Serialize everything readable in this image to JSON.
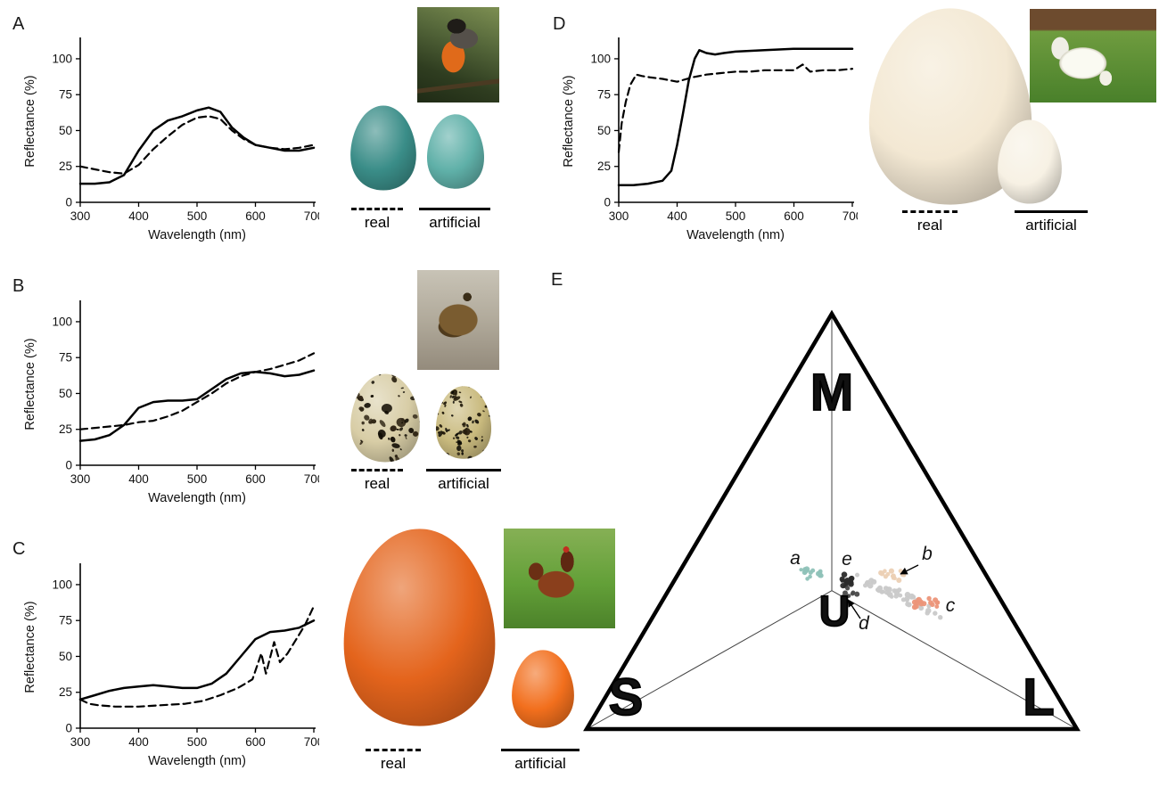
{
  "panels": {
    "A": {
      "real_egg_color": "#3a8d88",
      "artificial_egg_color": "#5fb0a8",
      "eggs_speckled": false
    },
    "B": {
      "real_egg_color": "#d8cda6",
      "artificial_egg_color": "#c9ba7e",
      "eggs_speckled": true
    },
    "C": {
      "real_egg_color": "#e4641c",
      "artificial_egg_color": "#f26f1d",
      "eggs_speckled": false
    },
    "D": {
      "real_egg_color": "#f3e8d3",
      "artificial_egg_color": "#f7f1e4",
      "eggs_speckled": false
    }
  },
  "chart_data": [
    {
      "panel": "A",
      "type": "line",
      "xlabel": "Wavelength (nm)",
      "ylabel": "Reflectance (%)",
      "xlim": [
        300,
        700
      ],
      "ylim": [
        0,
        113
      ],
      "xticks": [
        300,
        400,
        500,
        600,
        700
      ],
      "yticks": [
        0,
        25,
        50,
        75,
        100
      ],
      "series": [
        {
          "name": "real",
          "style": "dashed",
          "points": [
            [
              300,
              25
            ],
            [
              325,
              23
            ],
            [
              350,
              21
            ],
            [
              375,
              20
            ],
            [
              400,
              26
            ],
            [
              425,
              37
            ],
            [
              450,
              46
            ],
            [
              475,
              54
            ],
            [
              500,
              59
            ],
            [
              520,
              60
            ],
            [
              540,
              58
            ],
            [
              560,
              50
            ],
            [
              580,
              44
            ],
            [
              600,
              40
            ],
            [
              625,
              38
            ],
            [
              650,
              37
            ],
            [
              675,
              38
            ],
            [
              700,
              40
            ]
          ]
        },
        {
          "name": "artificial",
          "style": "solid",
          "points": [
            [
              300,
              13
            ],
            [
              325,
              13
            ],
            [
              350,
              14
            ],
            [
              375,
              19
            ],
            [
              400,
              36
            ],
            [
              425,
              50
            ],
            [
              450,
              57
            ],
            [
              475,
              60
            ],
            [
              500,
              64
            ],
            [
              520,
              66
            ],
            [
              540,
              63
            ],
            [
              560,
              52
            ],
            [
              580,
              45
            ],
            [
              600,
              40
            ],
            [
              625,
              38
            ],
            [
              650,
              36
            ],
            [
              675,
              36
            ],
            [
              700,
              38
            ]
          ]
        }
      ]
    },
    {
      "panel": "B",
      "type": "line",
      "xlabel": "Wavelength (nm)",
      "ylabel": "Reflectance (%)",
      "xlim": [
        300,
        700
      ],
      "ylim": [
        0,
        113
      ],
      "xticks": [
        300,
        400,
        500,
        600,
        700
      ],
      "yticks": [
        0,
        25,
        50,
        75,
        100
      ],
      "series": [
        {
          "name": "real",
          "style": "dashed",
          "points": [
            [
              300,
              25
            ],
            [
              325,
              26
            ],
            [
              350,
              27
            ],
            [
              375,
              28
            ],
            [
              400,
              30
            ],
            [
              425,
              31
            ],
            [
              450,
              34
            ],
            [
              475,
              38
            ],
            [
              500,
              44
            ],
            [
              525,
              50
            ],
            [
              550,
              57
            ],
            [
              575,
              62
            ],
            [
              600,
              65
            ],
            [
              625,
              67
            ],
            [
              650,
              70
            ],
            [
              675,
              73
            ],
            [
              700,
              78
            ]
          ]
        },
        {
          "name": "artificial",
          "style": "solid",
          "points": [
            [
              300,
              17
            ],
            [
              325,
              18
            ],
            [
              350,
              21
            ],
            [
              375,
              28
            ],
            [
              400,
              40
            ],
            [
              425,
              44
            ],
            [
              450,
              45
            ],
            [
              475,
              45
            ],
            [
              500,
              46
            ],
            [
              525,
              53
            ],
            [
              550,
              60
            ],
            [
              575,
              64
            ],
            [
              600,
              65
            ],
            [
              625,
              64
            ],
            [
              650,
              62
            ],
            [
              675,
              63
            ],
            [
              700,
              66
            ]
          ]
        }
      ]
    },
    {
      "panel": "C",
      "type": "line",
      "xlabel": "Wavelength (nm)",
      "ylabel": "Reflectance (%)",
      "xlim": [
        300,
        700
      ],
      "ylim": [
        0,
        113
      ],
      "xticks": [
        300,
        400,
        500,
        600,
        700
      ],
      "yticks": [
        0,
        25,
        50,
        75,
        100
      ],
      "series": [
        {
          "name": "real",
          "style": "dashed",
          "points": [
            [
              300,
              20
            ],
            [
              315,
              17
            ],
            [
              330,
              16
            ],
            [
              360,
              15
            ],
            [
              400,
              15
            ],
            [
              440,
              16
            ],
            [
              480,
              17
            ],
            [
              510,
              19
            ],
            [
              540,
              23
            ],
            [
              570,
              28
            ],
            [
              595,
              34
            ],
            [
              610,
              52
            ],
            [
              618,
              38
            ],
            [
              632,
              60
            ],
            [
              642,
              46
            ],
            [
              655,
              52
            ],
            [
              670,
              62
            ],
            [
              685,
              72
            ],
            [
              700,
              85
            ]
          ]
        },
        {
          "name": "artificial",
          "style": "solid",
          "points": [
            [
              300,
              20
            ],
            [
              325,
              23
            ],
            [
              350,
              26
            ],
            [
              375,
              28
            ],
            [
              400,
              29
            ],
            [
              425,
              30
            ],
            [
              450,
              29
            ],
            [
              475,
              28
            ],
            [
              500,
              28
            ],
            [
              525,
              31
            ],
            [
              550,
              38
            ],
            [
              575,
              50
            ],
            [
              600,
              62
            ],
            [
              625,
              67
            ],
            [
              650,
              68
            ],
            [
              675,
              70
            ],
            [
              700,
              75
            ]
          ]
        }
      ]
    },
    {
      "panel": "D",
      "type": "line",
      "xlabel": "Wavelength (nm)",
      "ylabel": "Reflectance (%)",
      "xlim": [
        300,
        700
      ],
      "ylim": [
        0,
        113
      ],
      "xticks": [
        300,
        400,
        500,
        600,
        700
      ],
      "yticks": [
        0,
        25,
        50,
        75,
        100
      ],
      "series": [
        {
          "name": "real",
          "style": "dashed",
          "points": [
            [
              300,
              35
            ],
            [
              305,
              55
            ],
            [
              312,
              70
            ],
            [
              320,
              82
            ],
            [
              330,
              89
            ],
            [
              340,
              88
            ],
            [
              355,
              87
            ],
            [
              375,
              86
            ],
            [
              400,
              84
            ],
            [
              425,
              87
            ],
            [
              450,
              89
            ],
            [
              475,
              90
            ],
            [
              500,
              91
            ],
            [
              525,
              91
            ],
            [
              550,
              92
            ],
            [
              575,
              92
            ],
            [
              600,
              92
            ],
            [
              615,
              96
            ],
            [
              628,
              91
            ],
            [
              650,
              92
            ],
            [
              675,
              92
            ],
            [
              700,
              93
            ]
          ]
        },
        {
          "name": "artificial",
          "style": "solid",
          "points": [
            [
              300,
              12
            ],
            [
              325,
              12
            ],
            [
              350,
              13
            ],
            [
              375,
              15
            ],
            [
              390,
              22
            ],
            [
              400,
              40
            ],
            [
              410,
              62
            ],
            [
              420,
              85
            ],
            [
              430,
              100
            ],
            [
              438,
              106
            ],
            [
              450,
              104
            ],
            [
              465,
              103
            ],
            [
              480,
              104
            ],
            [
              500,
              105
            ],
            [
              550,
              106
            ],
            [
              600,
              107
            ],
            [
              650,
              107
            ],
            [
              700,
              107
            ]
          ]
        }
      ]
    },
    {
      "panel": "E",
      "type": "scatter",
      "axis_labels": [
        "M",
        "S",
        "L",
        "U"
      ],
      "clusters": [
        {
          "label": "a",
          "color": "#8fc2b8",
          "center": [
            0.452,
            0.606
          ]
        },
        {
          "label": "e",
          "color": "#2b2b2b",
          "center": [
            0.522,
            0.62
          ]
        },
        {
          "label": "b",
          "color": "#ecd0b4",
          "center": [
            0.614,
            0.61
          ]
        },
        {
          "label": "d",
          "color": "#4a4a4a",
          "center": [
            0.53,
            0.648
          ]
        },
        {
          "label": "c",
          "color": "#ec9579",
          "center": [
            0.678,
            0.673
          ]
        },
        {
          "label": "",
          "color": "#c9c9c9",
          "center": [
            0.623,
            0.65
          ]
        }
      ]
    }
  ]
}
